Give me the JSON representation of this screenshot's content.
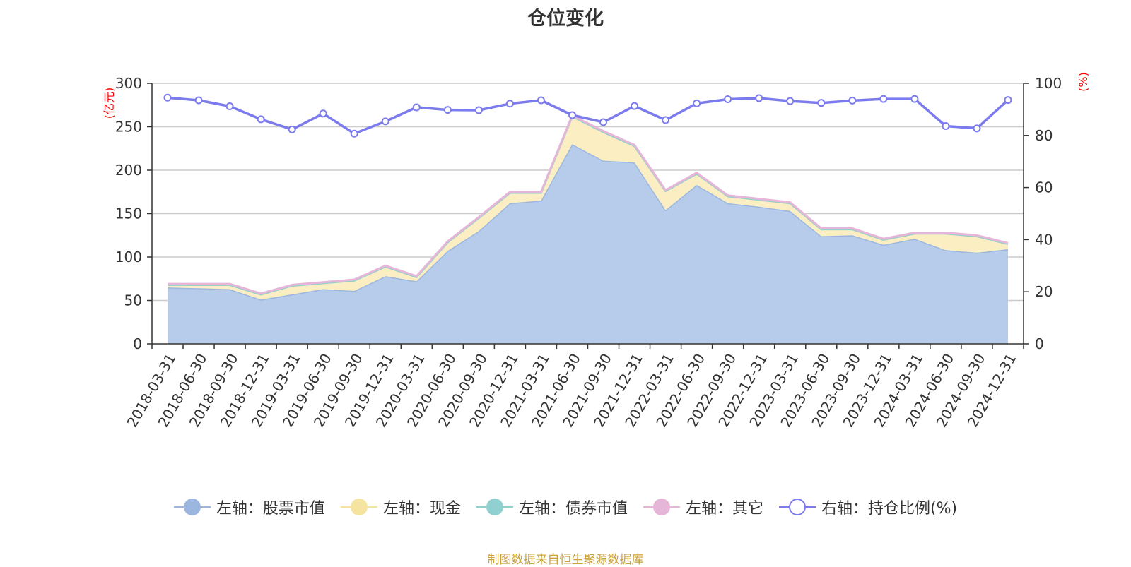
{
  "chart_data": {
    "type": "area",
    "title": "仓位变化",
    "ylabel_left": "(亿元)",
    "ylabel_right": "(%)",
    "ylim_left": [
      0,
      300
    ],
    "ylim_right": [
      0,
      100
    ],
    "yticks_left": [
      0,
      50,
      100,
      150,
      200,
      250,
      300
    ],
    "yticks_right": [
      0,
      20,
      40,
      60,
      80,
      100
    ],
    "grid": true,
    "legend_position": "bottom",
    "categories": [
      "2018-03-31",
      "2018-06-30",
      "2018-09-30",
      "2018-12-31",
      "2019-03-31",
      "2019-06-30",
      "2019-09-30",
      "2019-12-31",
      "2020-03-31",
      "2020-06-30",
      "2020-09-30",
      "2020-12-31",
      "2021-03-31",
      "2021-06-30",
      "2021-09-30",
      "2021-12-31",
      "2022-03-31",
      "2022-06-30",
      "2022-09-30",
      "2022-12-31",
      "2023-03-31",
      "2023-06-30",
      "2023-09-30",
      "2023-12-31",
      "2024-03-31",
      "2024-06-30",
      "2024-09-30",
      "2024-12-31"
    ],
    "series": [
      {
        "name": "左轴：股票市值",
        "axis": "left",
        "stack": true,
        "color": "#9bb7e0",
        "fill": "#b7cceb",
        "values": [
          65,
          64,
          63,
          51,
          57,
          63,
          61,
          78,
          72,
          107,
          130,
          162,
          165,
          230,
          211,
          209,
          154,
          183,
          162,
          158,
          153,
          124,
          125,
          114,
          121,
          108,
          105,
          109
        ]
      },
      {
        "name": "左轴：现金",
        "axis": "left",
        "stack": true,
        "color": "#f5e3a0",
        "fill": "#fbeec3",
        "values": [
          3,
          4,
          5,
          6,
          10,
          7,
          12,
          11,
          5,
          10,
          15,
          12,
          9,
          32,
          33,
          19,
          22,
          13,
          8,
          8,
          9,
          8,
          7,
          6,
          6,
          19,
          19,
          6
        ]
      },
      {
        "name": "左轴：债券市值",
        "axis": "left",
        "stack": true,
        "color": "#90d0d0",
        "fill": "#b5e2e2",
        "values": [
          0,
          0,
          0,
          0,
          0,
          0,
          0,
          0,
          0,
          0,
          0,
          0,
          0,
          0,
          0,
          0,
          0,
          0,
          0,
          0,
          0,
          0,
          0,
          0,
          0,
          0,
          0,
          0
        ]
      },
      {
        "name": "左轴：其它",
        "axis": "left",
        "stack": true,
        "color": "#e6b6d8",
        "fill": "#efcfe6",
        "values": [
          1,
          1,
          1,
          1,
          1,
          1,
          1,
          1,
          1,
          1,
          1,
          1,
          1,
          1,
          1,
          1,
          1,
          1,
          1,
          1,
          1,
          1,
          1,
          1,
          1,
          1,
          1,
          1
        ]
      },
      {
        "name": "右轴：持仓比例(%)",
        "axis": "right",
        "stack": false,
        "color": "#7b7bee",
        "values": [
          94.5,
          93.5,
          91.2,
          86.2,
          82.3,
          88.4,
          80.7,
          85.4,
          90.8,
          89.8,
          89.7,
          92.2,
          93.5,
          87.8,
          85.1,
          91.3,
          85.9,
          92.3,
          93.9,
          94.3,
          93.2,
          92.5,
          93.4,
          94.0,
          94.0,
          83.6,
          82.7,
          93.6
        ]
      }
    ]
  },
  "footer": "制图数据来自恒生聚源数据库"
}
